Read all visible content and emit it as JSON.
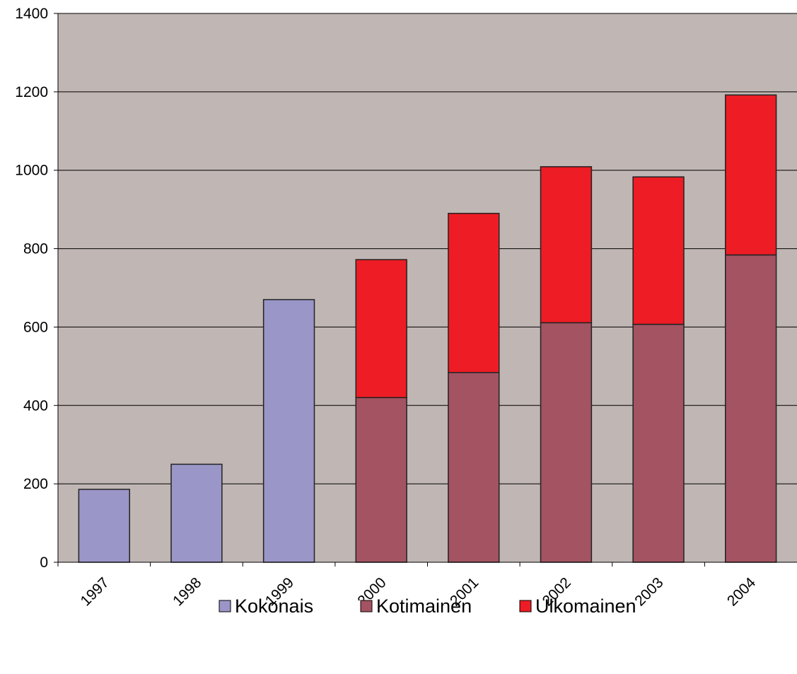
{
  "chart_data": {
    "type": "bar",
    "stacked": true,
    "categories": [
      "1997",
      "1998",
      "1999",
      "2000",
      "2001",
      "2002",
      "2003",
      "2004"
    ],
    "series": [
      {
        "name": "Kokonais",
        "color": "#9b96c8",
        "values": [
          186,
          250,
          670,
          0,
          0,
          0,
          0,
          0
        ]
      },
      {
        "name": "Kotimainen",
        "color": "#a35362",
        "values": [
          0,
          0,
          0,
          420,
          484,
          611,
          607,
          784
        ]
      },
      {
        "name": "Ulkomainen",
        "color": "#ee1c24",
        "values": [
          0,
          0,
          0,
          352,
          406,
          398,
          376,
          408
        ]
      }
    ],
    "title": "",
    "xlabel": "",
    "ylabel": "",
    "ylim": [
      0,
      1400
    ],
    "yticks": [
      "0",
      "200",
      "400",
      "600",
      "800",
      "1000",
      "1200",
      "1400"
    ],
    "grid": true,
    "plot_background": "#c0b6b3",
    "legend_position": "bottom"
  }
}
